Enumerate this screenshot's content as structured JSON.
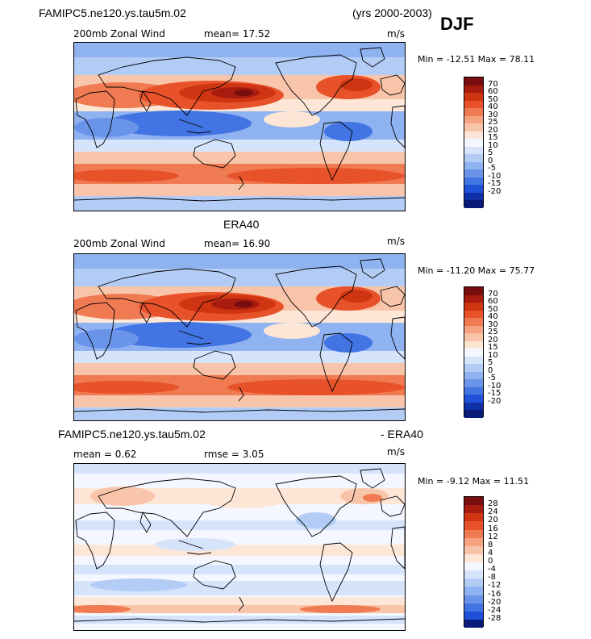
{
  "header": {
    "case_name": "FAMIPC5.ne120.ys.tau5m.02",
    "years": "(yrs 2000-2003)",
    "season": "DJF"
  },
  "panels": [
    {
      "id": "model",
      "left_label": "200mb Zonal Wind",
      "center_label": "mean=  17.52",
      "units": "m/s",
      "minmax": "Min = -12.51 Max =  78.11",
      "scale": "wind"
    },
    {
      "id": "obs",
      "title": "ERA40",
      "left_label": "200mb Zonal Wind",
      "center_label": "mean=  16.90",
      "units": "m/s",
      "minmax": "Min = -11.20 Max =  75.77",
      "scale": "wind"
    },
    {
      "id": "diff",
      "title_left": "FAMIPC5.ne120.ys.tau5m.02",
      "title_right": "- ERA40",
      "left_label": "mean =    0.62",
      "center_label": "rmse =    3.05",
      "units": "m/s",
      "minmax": "Min =  -9.12 Max =  11.51",
      "scale": "diff"
    }
  ],
  "colorbars": {
    "wind": {
      "labels": [
        "70",
        "60",
        "50",
        "40",
        "30",
        "25",
        "20",
        "15",
        "10",
        "5",
        "0",
        "-5",
        "-10",
        "-15",
        "-20"
      ],
      "colors": [
        "#7a0d0d",
        "#a81c0f",
        "#cf3512",
        "#e8522a",
        "#f07a52",
        "#f6a382",
        "#f9c5aa",
        "#fde6d6",
        "#f4f7ff",
        "#d6e4fb",
        "#b3ccf5",
        "#8fb2f0",
        "#6a94ea",
        "#4374e3",
        "#1f50d8",
        "#1030a8",
        "#0a1a78"
      ]
    },
    "diff": {
      "labels": [
        "28",
        "24",
        "20",
        "16",
        "12",
        "8",
        "4",
        "0",
        "-4",
        "-8",
        "-12",
        "-16",
        "-20",
        "-24",
        "-28"
      ],
      "colors": [
        "#7a0d0d",
        "#a81c0f",
        "#cf3512",
        "#e8522a",
        "#f07a52",
        "#f6a382",
        "#f9c5aa",
        "#fde6d6",
        "#f4f7ff",
        "#d6e4fb",
        "#b3ccf5",
        "#8fb2f0",
        "#6a94ea",
        "#4374e3",
        "#1f50d8",
        "#0a1a78"
      ]
    }
  },
  "chart_data": [
    {
      "type": "heatmap",
      "title": "FAMIPC5.ne120.ys.tau5m.02 (yrs 2000-2003) DJF",
      "variable": "200mb Zonal Wind",
      "units": "m/s",
      "mean": 17.52,
      "min": -12.51,
      "max": 78.11,
      "contour_levels": [
        -20,
        -15,
        -10,
        -5,
        0,
        5,
        10,
        15,
        20,
        25,
        30,
        40,
        50,
        60,
        70
      ]
    },
    {
      "type": "heatmap",
      "title": "ERA40",
      "variable": "200mb Zonal Wind",
      "units": "m/s",
      "mean": 16.9,
      "min": -11.2,
      "max": 75.77,
      "contour_levels": [
        -20,
        -15,
        -10,
        -5,
        0,
        5,
        10,
        15,
        20,
        25,
        30,
        40,
        50,
        60,
        70
      ]
    },
    {
      "type": "heatmap",
      "title": "FAMIPC5.ne120.ys.tau5m.02 - ERA40",
      "units": "m/s",
      "mean": 0.62,
      "rmse": 3.05,
      "min": -9.12,
      "max": 11.51,
      "contour_levels": [
        -28,
        -24,
        -20,
        -16,
        -12,
        -8,
        -4,
        0,
        4,
        8,
        12,
        16,
        20,
        24,
        28
      ]
    }
  ]
}
